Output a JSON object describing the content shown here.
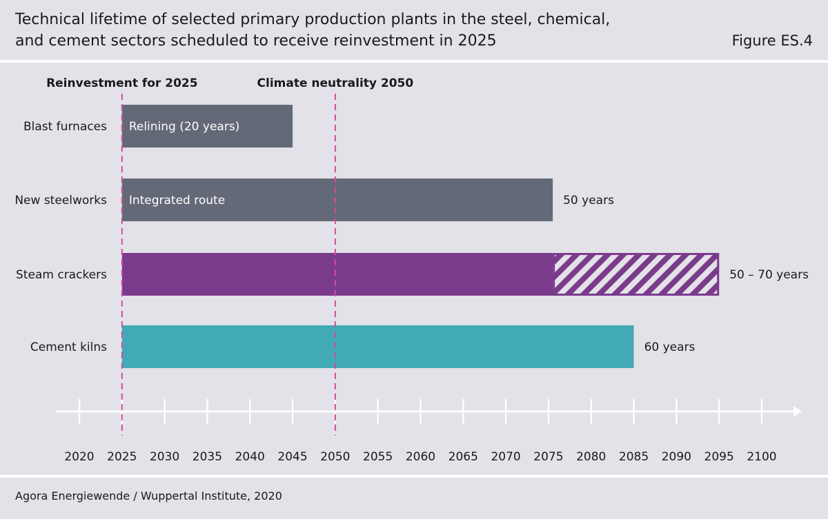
{
  "header": {
    "title_line1": "Technical lifetime of selected primary production plants in the steel, chemical,",
    "title_line2": "and cement sectors scheduled to receive reinvestment in 2025",
    "figure_label": "Figure ES.4"
  },
  "footer": {
    "source": "Agora Energiewende / Wuppertal Institute, 2020"
  },
  "colors": {
    "background": "#e2e2e8",
    "steel_grey": "#646978",
    "purple": "#7b3b8c",
    "teal": "#42aab5",
    "marker_pink": "#d44a9f",
    "axis": "#ffffff"
  },
  "chart_data": {
    "type": "bar",
    "orientation": "horizontal",
    "x_ticks": [
      "2020",
      "2025",
      "2030",
      "2035",
      "2040",
      "2045",
      "2050",
      "2055",
      "2060",
      "2065",
      "2070",
      "2075",
      "2080",
      "2085",
      "2090",
      "2095",
      "2100"
    ],
    "xlim": [
      2020,
      2100
    ],
    "markers": [
      {
        "label": "Reinvestment for 2025",
        "x": 2025
      },
      {
        "label": "Climate neutrality 2050",
        "x": 2050
      }
    ],
    "bars": [
      {
        "category": "Blast furnaces",
        "start": 2025,
        "end": 2045,
        "inner_label": "Relining (20 years)",
        "end_label": "",
        "color": "#646978"
      },
      {
        "category": "New steelworks",
        "start": 2025,
        "end": 2075.5,
        "inner_label": "Integrated route",
        "end_label": "50 years",
        "color": "#646978"
      },
      {
        "category": "Steam crackers",
        "start": 2025,
        "end": 2075.5,
        "hatched_end": 2095,
        "inner_label": "",
        "end_label": "50 – 70 years",
        "color": "#7b3b8c"
      },
      {
        "category": "Cement kilns",
        "start": 2025,
        "end": 2085,
        "inner_label": "",
        "end_label": "60 years",
        "color": "#42aab5"
      }
    ]
  }
}
